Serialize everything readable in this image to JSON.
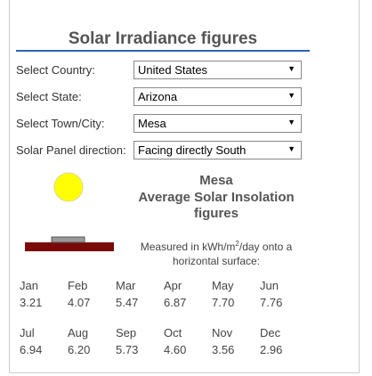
{
  "header": {
    "title": "Solar Irradiance figures"
  },
  "form": {
    "fields": [
      {
        "label": "Select Country:",
        "value": "United States"
      },
      {
        "label": "Select State:",
        "value": "Arizona"
      },
      {
        "label": "Select Town/City:",
        "value": "Mesa"
      },
      {
        "label": "Solar Panel direction:",
        "value": "Facing directly South"
      }
    ]
  },
  "result": {
    "town": "Mesa",
    "heading": "Average Solar Insolation figures",
    "unit_note": {
      "before": "Measured in kWh/m",
      "sup": "2",
      "after": "/day onto a horizontal surface:"
    },
    "months": [
      {
        "month": "Jan",
        "value": "3.21"
      },
      {
        "month": "Feb",
        "value": "4.07"
      },
      {
        "month": "Mar",
        "value": "5.47"
      },
      {
        "month": "Apr",
        "value": "6.87"
      },
      {
        "month": "May",
        "value": "7.70"
      },
      {
        "month": "Jun",
        "value": "7.76"
      },
      {
        "month": "Jul",
        "value": "6.94"
      },
      {
        "month": "Aug",
        "value": "6.20"
      },
      {
        "month": "Sep",
        "value": "5.73"
      },
      {
        "month": "Oct",
        "value": "4.60"
      },
      {
        "month": "Nov",
        "value": "3.56"
      },
      {
        "month": "Dec",
        "value": "2.96"
      }
    ]
  }
}
